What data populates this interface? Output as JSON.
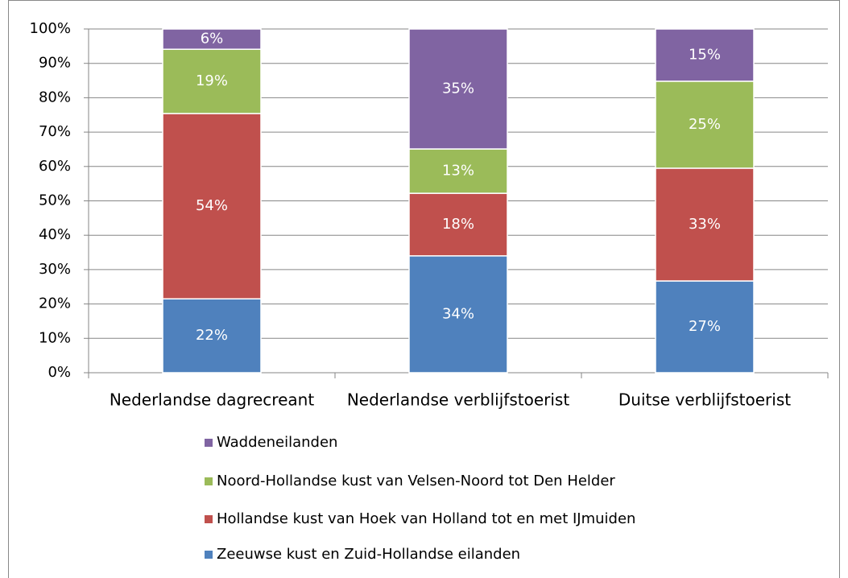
{
  "chart_data": {
    "type": "stacked_bar",
    "categories": [
      "Nederlandse dagrecreant",
      "Nederlandse verblijfstoerist",
      "Duitse verblijfstoerist"
    ],
    "series": [
      {
        "name": "Zeeuwse kust en Zuid-Hollandse eilanden",
        "color": "#4f81bd",
        "values": [
          21.5,
          34.0,
          26.7
        ],
        "value_labels": [
          "22%",
          "34%",
          "27%"
        ]
      },
      {
        "name": "Hollandse kust van Hoek van Holland tot en met IJmuiden",
        "color": "#c0504d",
        "values": [
          53.9,
          18.2,
          32.8
        ],
        "value_labels": [
          "54%",
          "18%",
          "33%"
        ]
      },
      {
        "name": "Noord-Hollandse kust van Velsen-Noord tot Den Helder",
        "color": "#9bbb59",
        "values": [
          18.7,
          12.9,
          25.3
        ],
        "value_labels": [
          "19%",
          "13%",
          "25%"
        ]
      },
      {
        "name": "Waddeneilanden",
        "color": "#8064a2",
        "values": [
          5.9,
          34.9,
          15.2
        ],
        "value_labels": [
          "6%",
          "35%",
          "15%"
        ]
      }
    ],
    "ylim": [
      0,
      100
    ],
    "yticks": [
      {
        "value": 0,
        "label": "0%"
      },
      {
        "value": 10,
        "label": "10%"
      },
      {
        "value": 20,
        "label": "20%"
      },
      {
        "value": 30,
        "label": "30%"
      },
      {
        "value": 40,
        "label": "40%"
      },
      {
        "value": 50,
        "label": "50%"
      },
      {
        "value": 60,
        "label": "60%"
      },
      {
        "value": 70,
        "label": "70%"
      },
      {
        "value": 80,
        "label": "80%"
      },
      {
        "value": 90,
        "label": "90%"
      },
      {
        "value": 100,
        "label": "100%"
      }
    ],
    "grid": true,
    "legend": "bottom"
  }
}
